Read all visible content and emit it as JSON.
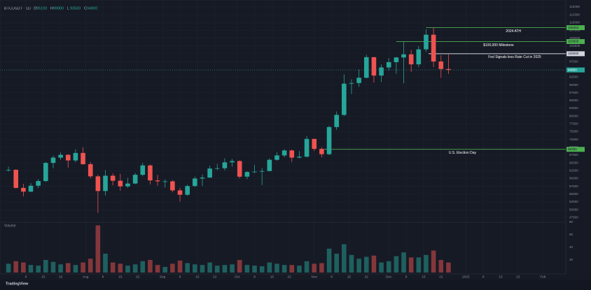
{
  "chart_data": {
    "type": "candlestick",
    "title": "BTCUSDT · 1D",
    "legend_labels": [
      "O",
      "H",
      "L",
      "C"
    ],
    "x": [
      0,
      3,
      6,
      9,
      12,
      15,
      18,
      21,
      24,
      27,
      30,
      33,
      36,
      39,
      42,
      45,
      48,
      51,
      54,
      57,
      60,
      63,
      66,
      69,
      72,
      75,
      78,
      81,
      84,
      87,
      90,
      93,
      96,
      99,
      102,
      105,
      108,
      111,
      114,
      117,
      120,
      123,
      126,
      129,
      132,
      135,
      138,
      141,
      144,
      147,
      150,
      153,
      156,
      159,
      162,
      165,
      168,
      171,
      174,
      177
    ],
    "open": [
      62700,
      62800,
      57000,
      55800,
      57700,
      59200,
      65000,
      66700,
      67600,
      65800,
      68200,
      64600,
      60700,
      56000,
      60900,
      59300,
      57500,
      58400,
      61200,
      64200,
      59400,
      59100,
      59100,
      56200,
      54800,
      57600,
      60000,
      60300,
      63200,
      63300,
      65200,
      65600,
      60600,
      62100,
      62200,
      62400,
      66000,
      67400,
      69000,
      66700,
      67000,
      72700,
      69500,
      67800,
      76500,
      80400,
      90400,
      90600,
      92300,
      98900,
      93000,
      95600,
      97300,
      98800,
      99800,
      96600,
      101400,
      106100,
      97500,
      95100
    ],
    "high": [
      63800,
      63000,
      58300,
      58500,
      59800,
      65300,
      67300,
      68400,
      67800,
      69400,
      70000,
      65300,
      61200,
      62700,
      61700,
      61500,
      60200,
      61800,
      65000,
      64500,
      61200,
      59700,
      59500,
      57000,
      58000,
      60600,
      61300,
      64100,
      64700,
      66500,
      66300,
      65800,
      62400,
      64400,
      63400,
      66500,
      68400,
      69400,
      69300,
      68800,
      73600,
      72800,
      70000,
      76900,
      81500,
      93400,
      91800,
      94900,
      99600,
      98900,
      96600,
      98600,
      99000,
      103900,
      101200,
      102500,
      107800,
      108353,
      99500,
      99800
    ],
    "low": [
      62200,
      56800,
      54300,
      55700,
      56900,
      58900,
      63300,
      66000,
      63500,
      65200,
      64400,
      60100,
      49000,
      54600,
      57800,
      56100,
      57000,
      58200,
      60700,
      58100,
      57700,
      57100,
      55600,
      52600,
      54500,
      57300,
      57600,
      60200,
      62700,
      62600,
      63800,
      60000,
      59800,
      61800,
      57900,
      62300,
      65700,
      66800,
      65300,
      66500,
      66800,
      68800,
      66800,
      67500,
      75600,
      80000,
      87100,
      89400,
      92100,
      90800,
      90900,
      94600,
      93600,
      90500,
      94200,
      95700,
      100600,
      95700,
      92300,
      93500
    ],
    "close": [
      62800,
      57000,
      55800,
      57700,
      59200,
      65000,
      66700,
      67600,
      65800,
      68200,
      64600,
      60700,
      56000,
      60900,
      59300,
      57500,
      58400,
      61200,
      64200,
      59400,
      59100,
      59100,
      56200,
      54800,
      57600,
      60000,
      60300,
      63200,
      63300,
      65200,
      65600,
      60600,
      62100,
      62200,
      62400,
      66000,
      67400,
      69000,
      66700,
      67000,
      72700,
      69500,
      67800,
      76500,
      80400,
      90400,
      90600,
      92300,
      98900,
      93000,
      95600,
      97300,
      98800,
      99800,
      96600,
      101400,
      106100,
      97500,
      95100,
      94800
    ],
    "volume": [
      14,
      18,
      16,
      12,
      11,
      20,
      17,
      13,
      15,
      12,
      16,
      22,
      75,
      30,
      16,
      14,
      11,
      13,
      18,
      20,
      12,
      9,
      14,
      19,
      15,
      13,
      12,
      16,
      11,
      12,
      13,
      20,
      12,
      11,
      10,
      16,
      14,
      12,
      12,
      11,
      18,
      14,
      15,
      38,
      30,
      45,
      28,
      22,
      25,
      27,
      16,
      18,
      26,
      32,
      24,
      24,
      28,
      35,
      20,
      16
    ],
    "volume_label": "Volume",
    "up_color": "#26a69a",
    "down_color": "#ef5350",
    "xlim": [
      -3.4,
      224.2
    ],
    "xticks": [
      {
        "value": 7,
        "label": "8"
      },
      {
        "value": 14,
        "label": "15"
      },
      {
        "value": 21,
        "label": "22"
      },
      {
        "value": 31,
        "label": "Aug"
      },
      {
        "value": 38,
        "label": "8"
      },
      {
        "value": 45,
        "label": "15"
      },
      {
        "value": 52,
        "label": "22"
      },
      {
        "value": 62,
        "label": "Sep"
      },
      {
        "value": 69,
        "label": "8"
      },
      {
        "value": 76,
        "label": "15"
      },
      {
        "value": 83,
        "label": "22"
      },
      {
        "value": 92,
        "label": "Oct"
      },
      {
        "value": 99,
        "label": "8"
      },
      {
        "value": 106,
        "label": "15"
      },
      {
        "value": 113,
        "label": "22"
      },
      {
        "value": 123,
        "label": "Nov"
      },
      {
        "value": 130,
        "label": "8"
      },
      {
        "value": 137,
        "label": "15"
      },
      {
        "value": 144,
        "label": "22"
      },
      {
        "value": 153,
        "label": "Dec"
      },
      {
        "value": 160,
        "label": "8"
      },
      {
        "value": 167,
        "label": "15"
      },
      {
        "value": 174,
        "label": "22"
      },
      {
        "value": 184,
        "label": "2025"
      },
      {
        "value": 191,
        "label": "8"
      },
      {
        "value": 198,
        "label": "15"
      },
      {
        "value": 205,
        "label": "22"
      },
      {
        "value": 215,
        "label": "Feb"
      }
    ],
    "ylim": [
      46000,
      116100
    ],
    "yticks": [
      115000,
      112500,
      110000,
      107500,
      105000,
      102500,
      100000,
      97500,
      95000,
      92500,
      90000,
      87500,
      85000,
      82500,
      80000,
      77500,
      75000,
      72500,
      70000,
      67500,
      65000,
      62500,
      60000,
      57500,
      55000,
      52500,
      50000,
      47500
    ],
    "volume_ylim": [
      0,
      80
    ],
    "volume_ticks": [
      20,
      40,
      60,
      80
    ],
    "grid": true,
    "annotations": [
      {
        "label": "2024 ATH",
        "value": 108353,
        "x": 168,
        "color": "#4caf50"
      },
      {
        "label": "$100,000 Milestone",
        "value": 103900,
        "x": 156,
        "color": "#4caf50"
      },
      {
        "label": "Fed Signals less Rate Cut in 2025",
        "value": 100000,
        "x": 169,
        "color": "#d1d4dc"
      },
      {
        "label": "U.S. Election Day",
        "value": 69355,
        "x": 127,
        "color": "#4caf50"
      }
    ],
    "footer": "TradingView"
  }
}
